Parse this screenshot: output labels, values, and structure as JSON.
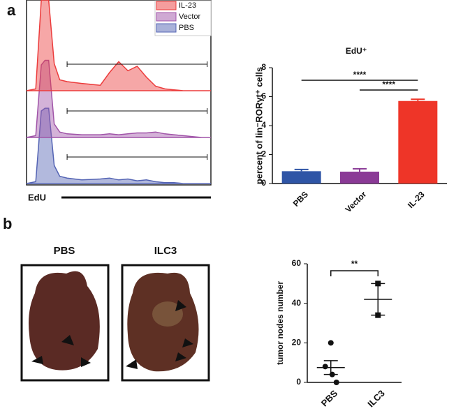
{
  "panels": [
    "a",
    "b"
  ],
  "images": {
    "labels": [
      "PBS",
      "ILC3"
    ]
  },
  "chart_data": [
    {
      "type": "density",
      "x_label": "EdU",
      "x": [
        0,
        5,
        8,
        10,
        12,
        15,
        18,
        22,
        30,
        40,
        45,
        50,
        55,
        60,
        65,
        70,
        75,
        80,
        85,
        90,
        95,
        100
      ],
      "gate": [
        22,
        98
      ],
      "series": [
        {
          "name": "PBS",
          "color": "#5464b4",
          "values": [
            0,
            2,
            80,
            83,
            83,
            20,
            8,
            6,
            4,
            5,
            6,
            4,
            5,
            3,
            4,
            2,
            1,
            1,
            0,
            0,
            0,
            0
          ]
        },
        {
          "name": "Vector",
          "color": "#a054a8",
          "values": [
            0,
            2,
            80,
            85,
            85,
            15,
            6,
            4,
            3,
            3,
            4,
            3,
            4,
            5,
            5,
            6,
            4,
            3,
            2,
            1,
            0,
            0
          ]
        },
        {
          "name": "IL-23",
          "color": "#ec3c3c",
          "values": [
            0,
            2,
            100,
            100,
            100,
            30,
            12,
            10,
            8,
            6,
            20,
            32,
            22,
            27,
            15,
            5,
            2,
            1,
            0,
            0,
            0,
            0
          ]
        }
      ]
    },
    {
      "type": "bar",
      "title": "EdU⁺",
      "y_label": "percent of  lin⁻RORγt⁺ cells",
      "categories": [
        "PBS",
        "Vector",
        "IL-23"
      ],
      "values": [
        0.85,
        0.82,
        5.7
      ],
      "errors": [
        0.12,
        0.2,
        0.12
      ],
      "colors": [
        "#2f55a6",
        "#8a3a96",
        "#ee3528"
      ],
      "ylim": [
        0,
        8
      ],
      "yticks": [
        0,
        2,
        4,
        6,
        8
      ],
      "annotations": [
        {
          "text": "****",
          "from": 0,
          "to": 2
        },
        {
          "text": "****",
          "from": 1,
          "to": 2
        }
      ]
    },
    {
      "type": "scatter",
      "y_label": "tumor nodes number",
      "categories": [
        "PBS",
        "ILC3"
      ],
      "series": [
        {
          "name": "PBS",
          "values": [
            20,
            8,
            4,
            0
          ]
        },
        {
          "name": "ILC3",
          "values": [
            50,
            34
          ]
        }
      ],
      "means": [
        7.5,
        42
      ],
      "sems": [
        3.5,
        8
      ],
      "ylim": [
        0,
        60
      ],
      "yticks": [
        0,
        20,
        40,
        60
      ],
      "annotations": [
        {
          "text": "**",
          "from": 0,
          "to": 1
        }
      ]
    }
  ]
}
